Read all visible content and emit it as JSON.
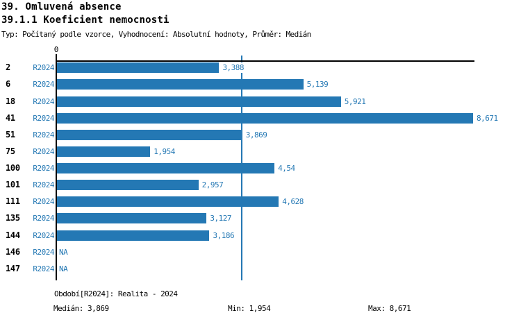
{
  "title": "39. Omluvená absence",
  "subtitle": "39.1.1 Koeficient nemocnosti",
  "meta": "Typ: Počítaný podle vzorce, Vyhodnocení: Absolutní hodnoty, Průměr: Medián",
  "colors": {
    "bar": "#2478b4",
    "text_blue": "#2478b4",
    "axis": "#000000",
    "background": "#ffffff"
  },
  "axis": {
    "zero_label": "0"
  },
  "chart_data": {
    "type": "bar",
    "orientation": "horizontal",
    "title": "39.1.1 Koeficient nemocnosti",
    "series_name": "R2024",
    "categories": [
      "2",
      "6",
      "18",
      "41",
      "51",
      "75",
      "100",
      "101",
      "111",
      "135",
      "144",
      "146",
      "147"
    ],
    "values": [
      3.388,
      5.139,
      5.921,
      8.671,
      3.869,
      1.954,
      4.54,
      2.957,
      4.628,
      3.127,
      3.186,
      null,
      null
    ],
    "value_labels": [
      "3,388",
      "5,139",
      "5,921",
      "8,671",
      "3,869",
      "1,954",
      "4,54",
      "2,957",
      "4,628",
      "3,127",
      "3,186",
      "NA",
      "NA"
    ],
    "na_label": "NA",
    "xlim": [
      0,
      8.7
    ],
    "median": 3.869,
    "min": 1.954,
    "max": 8.671,
    "grid": false,
    "legend_position": "none"
  },
  "footer": {
    "period": "Období[R2024]: Realita - 2024",
    "median": "Medián: 3,869",
    "min": "Min: 1,954",
    "max": "Max: 8,671"
  }
}
